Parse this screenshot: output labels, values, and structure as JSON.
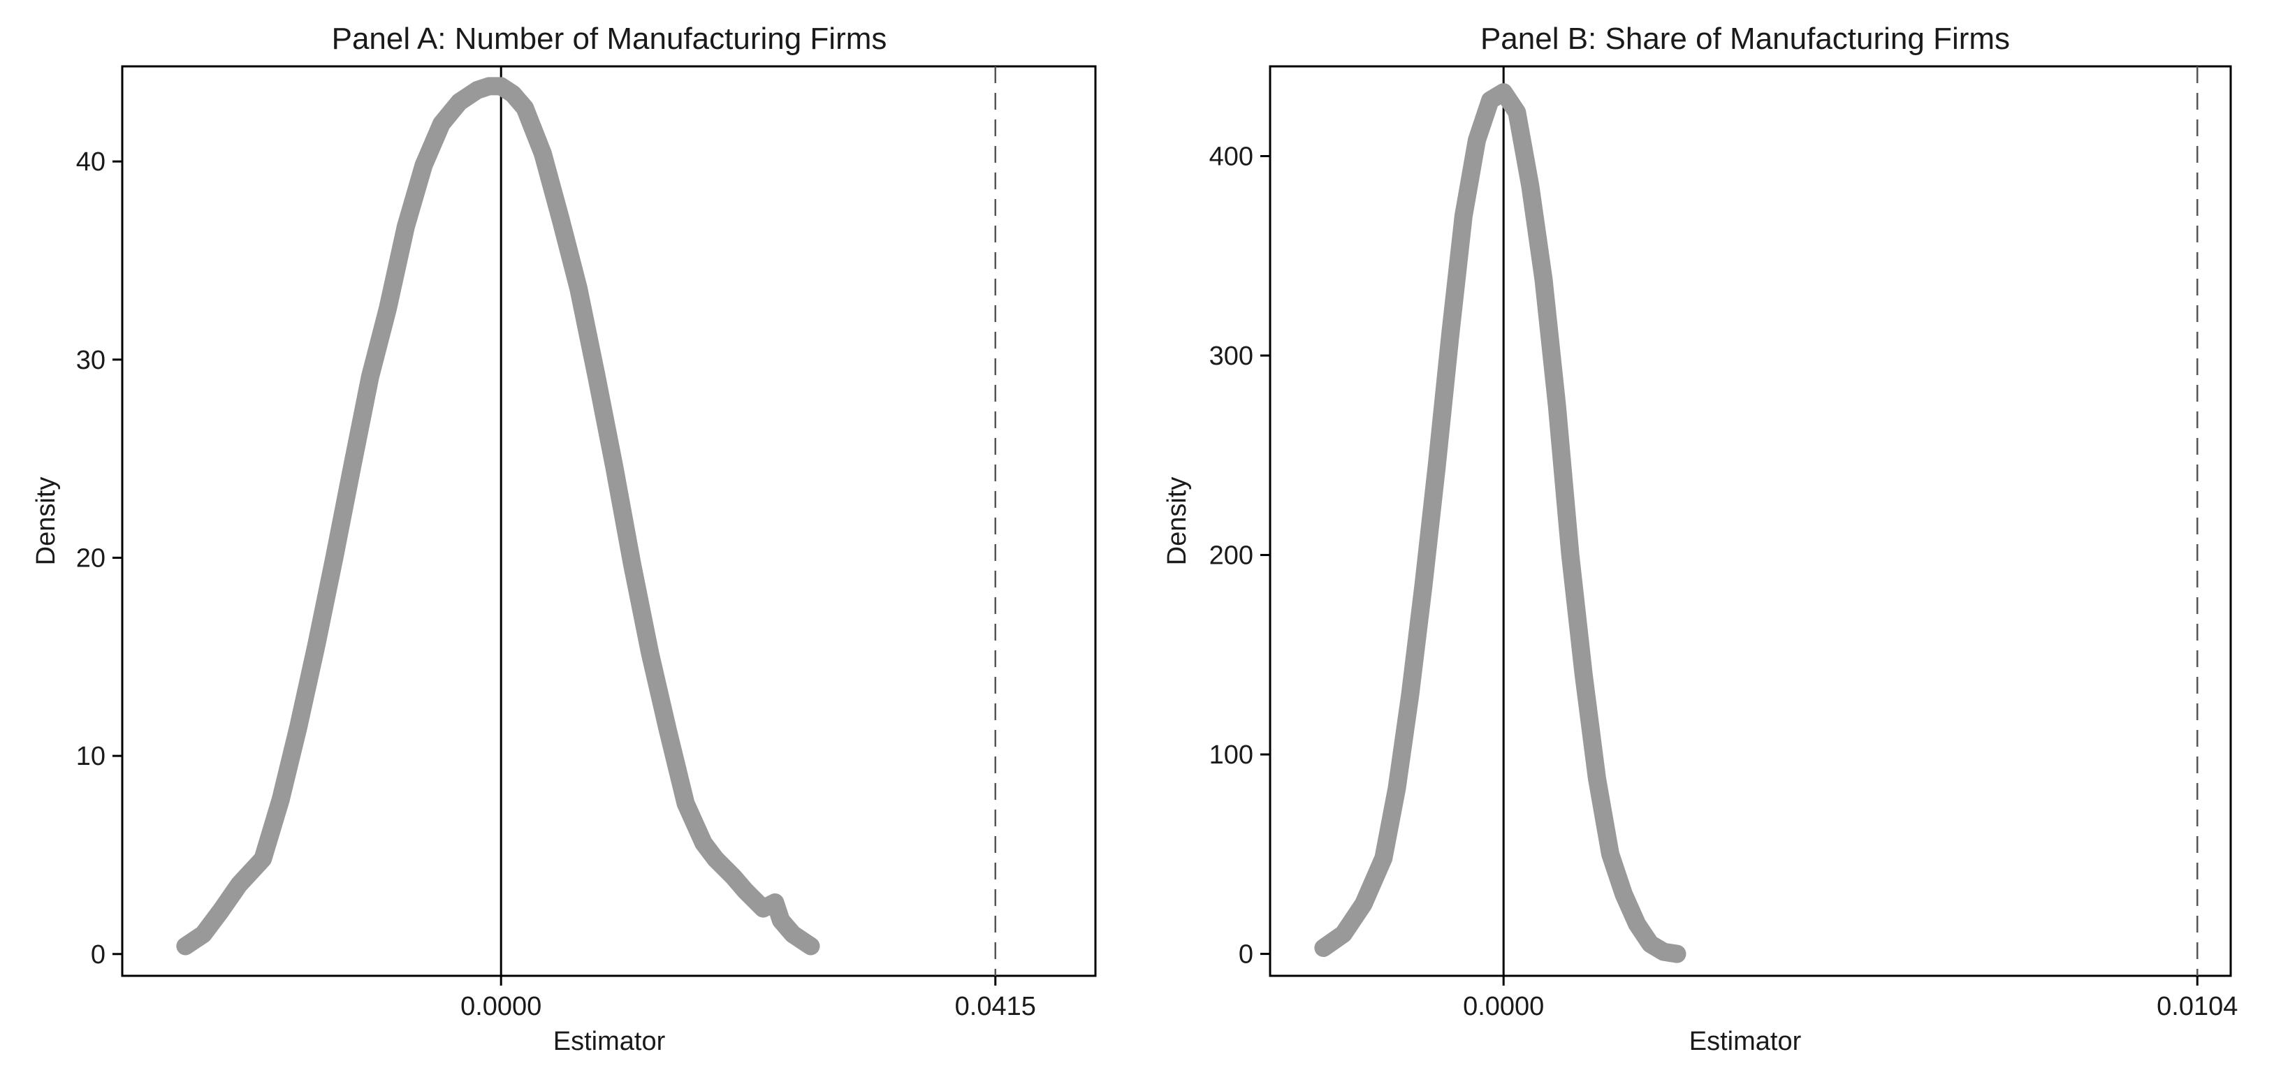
{
  "chart_data": [
    {
      "type": "line",
      "title": "Panel A: Number of Manufacturing Firms",
      "xlabel": "Estimator",
      "ylabel": "Density",
      "xlim": [
        -0.0318,
        0.0499
      ],
      "ylim": [
        -1.1,
        44.8
      ],
      "yticks": [
        0,
        10,
        20,
        30,
        40
      ],
      "xticks": [
        0.0,
        0.0415
      ],
      "xtick_labels": [
        "0.0000",
        "0.0415"
      ],
      "reference_lines": [
        {
          "x": 0.0,
          "style": "solid",
          "color": "#000000"
        },
        {
          "x": 0.0415,
          "style": "dashed",
          "color": "#555555"
        }
      ],
      "grid": false,
      "legend": "none",
      "series": [
        {
          "color": "#999999",
          "x": [
            -0.0265,
            -0.025,
            -0.0235,
            -0.022,
            -0.02,
            -0.0185,
            -0.017,
            -0.0155,
            -0.014,
            -0.0125,
            -0.011,
            -0.0095,
            -0.008,
            -0.0065,
            -0.005,
            -0.0035,
            -0.002,
            -0.001,
            0.0,
            0.001,
            0.002,
            0.0035,
            0.005,
            0.0065,
            0.008,
            0.0095,
            0.011,
            0.0125,
            0.014,
            0.0155,
            0.017,
            0.018,
            0.0195,
            0.0205,
            0.022,
            0.023,
            0.0235,
            0.0245,
            0.026
          ],
          "y": [
            0.4,
            1.0,
            2.2,
            3.5,
            4.8,
            7.8,
            11.5,
            15.6,
            20.0,
            24.6,
            29.1,
            32.6,
            36.7,
            39.8,
            41.9,
            43.0,
            43.6,
            43.8,
            43.8,
            43.4,
            42.7,
            40.4,
            37.1,
            33.6,
            29.2,
            24.6,
            19.7,
            15.2,
            11.3,
            7.6,
            5.6,
            4.8,
            3.9,
            3.2,
            2.3,
            2.6,
            1.7,
            1.0,
            0.4
          ]
        }
      ]
    },
    {
      "type": "line",
      "title": "Panel B: Share of Manufacturing Firms",
      "xlabel": "Estimator",
      "ylabel": "Density",
      "xlim": [
        -0.0035,
        0.0109
      ],
      "ylim": [
        -11,
        445
      ],
      "yticks": [
        0,
        100,
        200,
        300,
        400
      ],
      "xticks": [
        0.0,
        0.0104
      ],
      "xtick_labels": [
        "0.0000",
        "0.0104"
      ],
      "reference_lines": [
        {
          "x": 0.0,
          "style": "solid",
          "color": "#000000"
        },
        {
          "x": 0.0104,
          "style": "dashed",
          "color": "#555555"
        }
      ],
      "grid": false,
      "legend": "none",
      "series": [
        {
          "color": "#999999",
          "x": [
            -0.0027,
            -0.0024,
            -0.0021,
            -0.0018,
            -0.0016,
            -0.0014,
            -0.0012,
            -0.001,
            -0.0008,
            -0.0006,
            -0.0004,
            -0.0002,
            0.0,
            0.0002,
            0.0004,
            0.0006,
            0.0008,
            0.001,
            0.0012,
            0.0014,
            0.0016,
            0.0018,
            0.002,
            0.0022,
            0.0024,
            0.0026
          ],
          "y": [
            3,
            10,
            25,
            48,
            83,
            130,
            185,
            245,
            310,
            370,
            408,
            428,
            432,
            422,
            385,
            338,
            275,
            200,
            140,
            88,
            50,
            30,
            15,
            5,
            1,
            0
          ]
        }
      ]
    }
  ]
}
